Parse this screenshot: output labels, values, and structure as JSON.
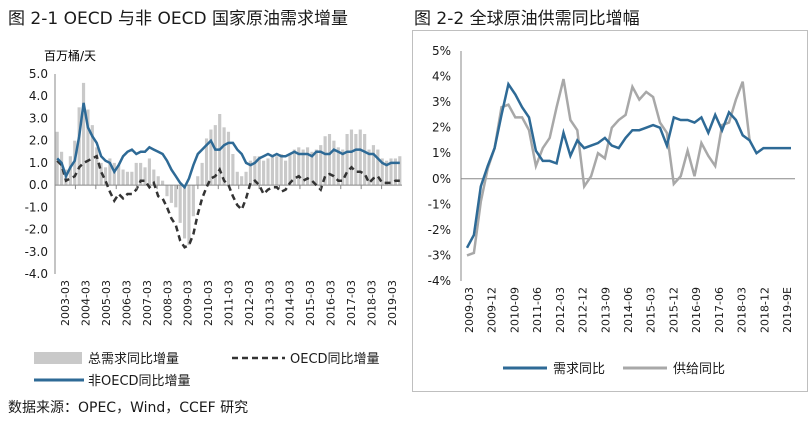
{
  "figure1_title": "图 2-1 OECD 与非 OECD 国家原油需求增量",
  "figure2_title": "图 2-2 全球原油供需同比增幅",
  "source_text": "数据来源：OPEC，Wind，CCEF 研究",
  "colors": {
    "total": "#c9c9c9",
    "oecd": "#333333",
    "non_oecd": "#2e6a96",
    "supply": "#a8a8a8",
    "demand": "#2e6a96",
    "axis": "#888888"
  },
  "chart_data": [
    {
      "type": "bar",
      "unit_label": "百万桶/天",
      "ylim": [
        -4.0,
        5.0
      ],
      "y_ticks": [
        "5.0",
        "4.0",
        "3.0",
        "2.0",
        "1.0",
        "0.0",
        "-1.0",
        "-2.0",
        "-3.0",
        "-4.0"
      ],
      "x_tick_labels": [
        "2003-03",
        "2004-03",
        "2005-03",
        "2006-03",
        "2007-03",
        "2008-03",
        "2009-03",
        "2010-03",
        "2011-03",
        "2012-03",
        "2013-03",
        "2014-03",
        "2015-03",
        "2016-03",
        "2017-03",
        "2018-03",
        "2019-03"
      ],
      "legend_position": "bottom",
      "series": [
        {
          "name": "总需求同比增量",
          "kind": "bar",
          "values": [
            2.4,
            1.5,
            0.7,
            1.3,
            2.0,
            3.5,
            4.6,
            3.4,
            2.7,
            1.7,
            1.0,
            0.8,
            1.2,
            1.0,
            0.9,
            0.7,
            0.6,
            0.6,
            1.0,
            1.0,
            0.8,
            1.2,
            0.7,
            0.4,
            0.2,
            -0.5,
            -0.8,
            -1.0,
            -1.7,
            -2.4,
            -2.7,
            -1.4,
            0.4,
            1.0,
            2.1,
            2.5,
            2.7,
            3.2,
            2.6,
            2.4,
            1.4,
            0.6,
            0.4,
            0.6,
            1.1,
            1.3,
            1.3,
            1.1,
            1.2,
            1.3,
            1.3,
            1.4,
            1.1,
            1.4,
            1.6,
            1.7,
            1.6,
            1.7,
            1.5,
            1.6,
            1.8,
            2.2,
            2.3,
            2.0,
            1.7,
            1.6,
            2.3,
            2.5,
            2.3,
            2.5,
            2.3,
            1.6,
            1.8,
            1.6,
            1.2,
            1.1,
            1.2,
            1.2,
            1.3
          ]
        },
        {
          "name": "OECD同比增量",
          "kind": "line-dashed",
          "values": [
            1.1,
            0.9,
            0.2,
            0.3,
            0.4,
            0.8,
            1.0,
            1.1,
            1.2,
            1.3,
            0.6,
            0.2,
            -0.3,
            -0.7,
            -0.4,
            -0.6,
            -0.4,
            -0.4,
            -0.2,
            0.2,
            0.2,
            -0.1,
            0.1,
            -0.5,
            -0.6,
            -1.0,
            -1.5,
            -1.8,
            -2.5,
            -2.8,
            -2.7,
            -2.2,
            -1.3,
            -0.6,
            -0.1,
            0.3,
            0.4,
            0.7,
            0.2,
            0.0,
            -0.5,
            -0.9,
            -1.1,
            -0.6,
            0.1,
            0.2,
            0.0,
            -0.4,
            -0.2,
            -0.1,
            -0.1,
            -0.3,
            -0.2,
            0.1,
            0.3,
            0.4,
            0.2,
            0.3,
            0.2,
            0.0,
            -0.2,
            0.4,
            0.5,
            0.4,
            0.2,
            0.2,
            0.6,
            0.8,
            0.6,
            0.6,
            0.5,
            0.1,
            0.3,
            0.4,
            0.1,
            0.1,
            0.1,
            0.2,
            0.2
          ]
        },
        {
          "name": "非OECD同比增量",
          "kind": "line",
          "values": [
            1.2,
            1.0,
            0.4,
            0.8,
            1.1,
            2.2,
            3.7,
            2.6,
            2.2,
            1.9,
            1.3,
            1.1,
            1.0,
            0.6,
            0.9,
            1.3,
            1.5,
            1.6,
            1.4,
            1.5,
            1.5,
            1.7,
            1.6,
            1.5,
            1.4,
            1.1,
            0.7,
            0.4,
            0.1,
            -0.1,
            0.3,
            0.9,
            1.4,
            1.6,
            1.8,
            2.0,
            1.6,
            1.6,
            1.8,
            1.9,
            1.9,
            1.6,
            1.4,
            1.0,
            0.9,
            1.0,
            1.2,
            1.3,
            1.4,
            1.3,
            1.4,
            1.3,
            1.3,
            1.4,
            1.5,
            1.4,
            1.4,
            1.4,
            1.3,
            1.5,
            1.5,
            1.4,
            1.4,
            1.6,
            1.5,
            1.4,
            1.5,
            1.5,
            1.6,
            1.6,
            1.5,
            1.4,
            1.4,
            1.2,
            1.0,
            0.9,
            1.0,
            1.0,
            1.0
          ]
        }
      ]
    },
    {
      "type": "line",
      "ylim": [
        -4,
        5
      ],
      "y_ticks": [
        "5%",
        "4%",
        "3%",
        "2%",
        "1%",
        "0%",
        "-1%",
        "-2%",
        "-3%",
        "-4%"
      ],
      "x_tick_labels": [
        "2009-03",
        "2009-12",
        "2010-09",
        "2011-06",
        "2012-03",
        "2012-12",
        "2013-09",
        "2014-06",
        "2015-03",
        "2015-12",
        "2016-09",
        "2017-06",
        "2018-03",
        "2018-12",
        "2019-9E"
      ],
      "legend_position": "bottom",
      "series": [
        {
          "name": "需求同比",
          "values": [
            -2.7,
            -2.2,
            -0.3,
            0.5,
            1.2,
            2.5,
            3.7,
            3.3,
            2.8,
            2.4,
            1.1,
            0.7,
            0.7,
            0.6,
            1.8,
            0.9,
            1.5,
            1.2,
            1.3,
            1.4,
            1.6,
            1.3,
            1.2,
            1.6,
            1.9,
            1.9,
            2.0,
            2.1,
            2.0,
            1.3,
            2.4,
            2.3,
            2.3,
            2.2,
            2.4,
            1.8,
            2.5,
            1.9,
            2.6,
            2.3,
            1.7,
            1.5,
            1.0,
            1.2,
            1.2,
            1.2,
            1.2,
            1.2
          ]
        },
        {
          "name": "供给同比",
          "values": [
            -3.0,
            -2.9,
            -0.9,
            0.4,
            1.2,
            2.8,
            2.9,
            2.4,
            2.4,
            1.9,
            0.5,
            1.2,
            1.6,
            2.8,
            3.9,
            2.3,
            1.9,
            -0.3,
            0.1,
            1.0,
            0.8,
            2.0,
            2.3,
            2.5,
            3.6,
            3.1,
            3.4,
            3.2,
            2.2,
            1.8,
            -0.2,
            0.1,
            1.1,
            0.1,
            1.4,
            0.9,
            0.5,
            2.1,
            2.2,
            3.1,
            3.8,
            1.5
          ]
        }
      ]
    }
  ]
}
